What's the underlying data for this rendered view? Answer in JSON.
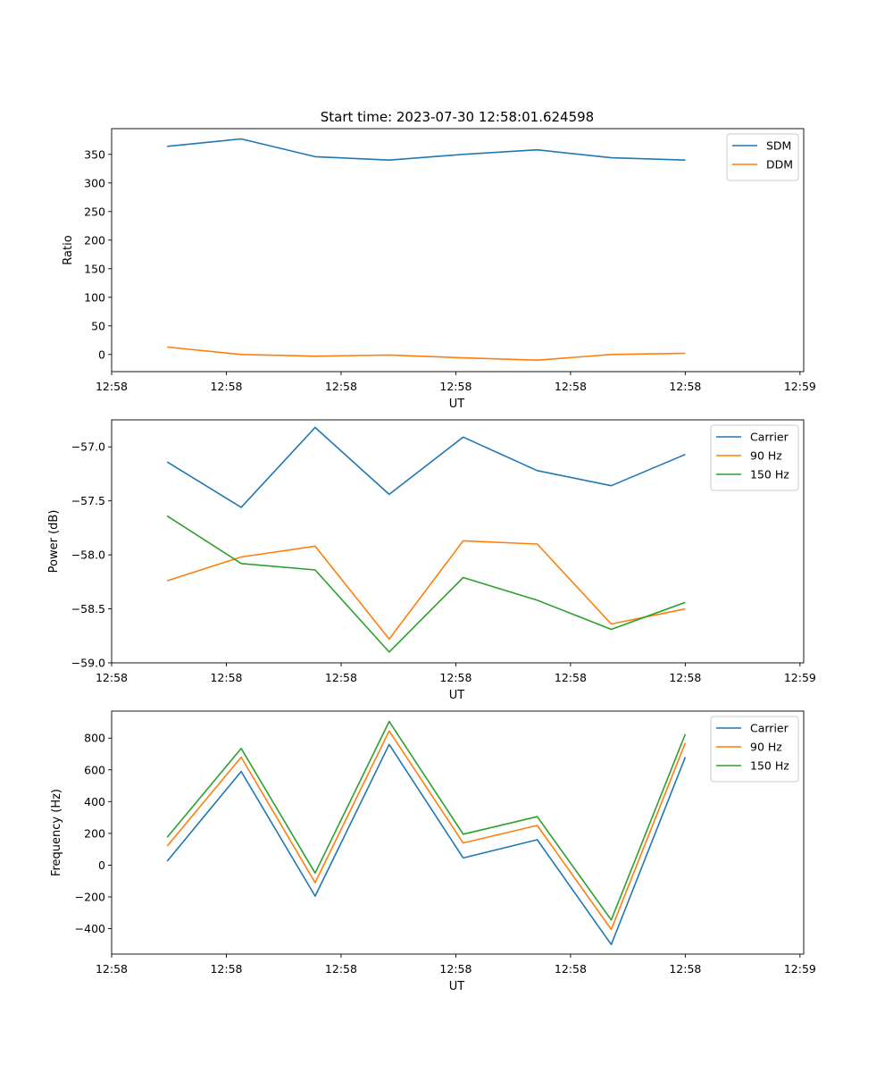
{
  "figure": {
    "title": "Start time: 2023-07-30 12:58:01.624598"
  },
  "chart_data": [
    {
      "type": "line",
      "title": "Start time: 2023-07-30 12:58:01.624598",
      "xlabel": "UT",
      "ylabel": "Ratio",
      "x": [
        0,
        1,
        2,
        3,
        4,
        5,
        6,
        7
      ],
      "xlim": [
        -0.75,
        8.6
      ],
      "x_ticks": [
        -0.75,
        0.8,
        2.35,
        3.9,
        5.45,
        7.0,
        8.55
      ],
      "x_tick_labels": [
        "12:58",
        "12:58",
        "12:58",
        "12:58",
        "12:58",
        "12:58",
        "12:59"
      ],
      "ylim": [
        -30,
        395
      ],
      "y_ticks": [
        0,
        50,
        100,
        150,
        200,
        250,
        300,
        350
      ],
      "y_tick_labels": [
        "0",
        "50",
        "100",
        "150",
        "200",
        "250",
        "300",
        "350"
      ],
      "legend_position": "top-right",
      "series": [
        {
          "name": "SDM",
          "color": "#1f77b4",
          "values": [
            364,
            377,
            346,
            340,
            350,
            358,
            344,
            340
          ]
        },
        {
          "name": "DDM",
          "color": "#ff7f0e",
          "values": [
            13,
            0,
            -3,
            -1,
            -6,
            -10,
            0,
            2
          ]
        }
      ]
    },
    {
      "type": "line",
      "title": "",
      "xlabel": "UT",
      "ylabel": "Power (dB)",
      "x": [
        0,
        1,
        2,
        3,
        4,
        5,
        6,
        7
      ],
      "xlim": [
        -0.75,
        8.6
      ],
      "x_ticks": [
        -0.75,
        0.8,
        2.35,
        3.9,
        5.45,
        7.0,
        8.55
      ],
      "x_tick_labels": [
        "12:58",
        "12:58",
        "12:58",
        "12:58",
        "12:58",
        "12:58",
        "12:59"
      ],
      "ylim": [
        -59.0,
        -56.75
      ],
      "y_ticks": [
        -59.0,
        -58.5,
        -58.0,
        -57.5,
        -57.0
      ],
      "y_tick_labels": [
        "−59.0",
        "−58.5",
        "−58.0",
        "−57.5",
        "−57.0"
      ],
      "legend_position": "top-right",
      "series": [
        {
          "name": "Carrier",
          "color": "#1f77b4",
          "values": [
            -57.14,
            -57.56,
            -56.82,
            -57.44,
            -56.91,
            -57.22,
            -57.36,
            -57.07
          ]
        },
        {
          "name": "90 Hz",
          "color": "#ff7f0e",
          "values": [
            -58.24,
            -58.02,
            -57.92,
            -58.78,
            -57.87,
            -57.9,
            -58.64,
            -58.5
          ]
        },
        {
          "name": "150 Hz",
          "color": "#2ca02c",
          "values": [
            -57.64,
            -58.08,
            -58.14,
            -58.9,
            -58.21,
            -58.42,
            -58.69,
            -58.44
          ]
        }
      ]
    },
    {
      "type": "line",
      "title": "",
      "xlabel": "UT",
      "ylabel": "Frequency (Hz)",
      "x": [
        0,
        1,
        2,
        3,
        4,
        5,
        6,
        7
      ],
      "xlim": [
        -0.75,
        8.6
      ],
      "x_ticks": [
        -0.75,
        0.8,
        2.35,
        3.9,
        5.45,
        7.0,
        8.55
      ],
      "x_tick_labels": [
        "12:58",
        "12:58",
        "12:58",
        "12:58",
        "12:58",
        "12:58",
        "12:59"
      ],
      "ylim": [
        -560,
        970
      ],
      "y_ticks": [
        -400,
        -200,
        0,
        200,
        400,
        600,
        800
      ],
      "y_tick_labels": [
        "−400",
        "−200",
        "0",
        "200",
        "400",
        "600",
        "800"
      ],
      "legend_position": "top-right",
      "series": [
        {
          "name": "Carrier",
          "color": "#1f77b4",
          "values": [
            25,
            590,
            -195,
            760,
            45,
            160,
            -500,
            680
          ]
        },
        {
          "name": "90 Hz",
          "color": "#ff7f0e",
          "values": [
            120,
            680,
            -110,
            845,
            140,
            250,
            -405,
            770
          ]
        },
        {
          "name": "150 Hz",
          "color": "#2ca02c",
          "values": [
            175,
            735,
            -50,
            905,
            195,
            305,
            -345,
            825
          ]
        }
      ]
    }
  ]
}
